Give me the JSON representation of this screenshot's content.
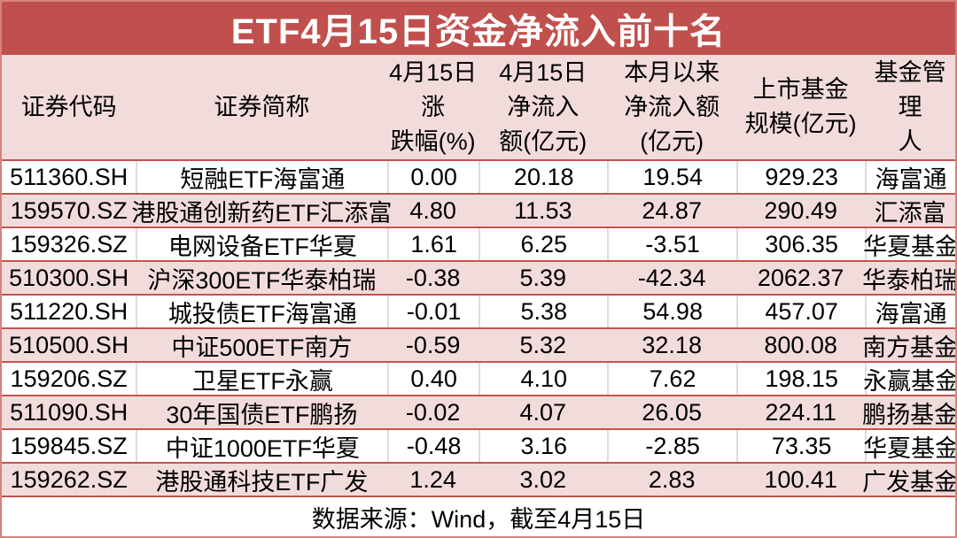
{
  "title": "ETF4月15日资金净流入前十名",
  "colors": {
    "title_background": "#c0504d",
    "row_highlight_pink": "#f2dcdb",
    "row_border_red": "#c4534f",
    "title_text": "#ffffff",
    "body_text": "#000000"
  },
  "table": {
    "headers": [
      "证券代码",
      "证券简称",
      "4月15日涨\n跌幅(%)",
      "4月15日\n净流入\n额(亿元)",
      "本月以来\n净流入额\n(亿元)",
      "上市基金\n规模(亿元)",
      "基金管理\n人"
    ],
    "rows": [
      [
        "511360.SH",
        "短融ETF海富通",
        "0.00",
        "20.18",
        "19.54",
        "929.23",
        "海富通"
      ],
      [
        "159570.SZ",
        "港股通创新药ETF汇添富",
        "4.80",
        "11.53",
        "24.87",
        "290.49",
        "汇添富"
      ],
      [
        "159326.SZ",
        "电网设备ETF华夏",
        "1.61",
        "6.25",
        "-3.51",
        "306.35",
        "华夏基金"
      ],
      [
        "510300.SH",
        "沪深300ETF华泰柏瑞",
        "-0.38",
        "5.39",
        "-42.34",
        "2062.37",
        "华泰柏瑞"
      ],
      [
        "511220.SH",
        "城投债ETF海富通",
        "-0.01",
        "5.38",
        "54.98",
        "457.07",
        "海富通"
      ],
      [
        "510500.SH",
        "中证500ETF南方",
        "-0.59",
        "5.32",
        "32.18",
        "800.08",
        "南方基金"
      ],
      [
        "159206.SZ",
        "卫星ETF永赢",
        "0.40",
        "4.10",
        "7.62",
        "198.15",
        "永赢基金"
      ],
      [
        "511090.SH",
        "30年国债ETF鹏扬",
        "-0.02",
        "4.07",
        "26.05",
        "224.11",
        "鹏扬基金"
      ],
      [
        "159845.SZ",
        "中证1000ETF华夏",
        "-0.48",
        "3.16",
        "-2.85",
        "73.35",
        "华夏基金"
      ],
      [
        "159262.SZ",
        "港股通科技ETF广发",
        "1.24",
        "3.02",
        "2.83",
        "100.41",
        "广发基金"
      ]
    ]
  },
  "footer": "数据来源：Wind，截至4月15日",
  "chart_data": {
    "type": "table",
    "title": "ETF4月15日资金净流入前十名",
    "columns": [
      "证券代码",
      "证券简称",
      "4月15日涨跌幅(%)",
      "4月15日净流入额(亿元)",
      "本月以来净流入额(亿元)",
      "上市基金规模(亿元)",
      "基金管理人"
    ],
    "rows": [
      [
        "511360.SH",
        "短融ETF海富通",
        0.0,
        20.18,
        19.54,
        929.23,
        "海富通"
      ],
      [
        "159570.SZ",
        "港股通创新药ETF汇添富",
        4.8,
        11.53,
        24.87,
        290.49,
        "汇添富"
      ],
      [
        "159326.SZ",
        "电网设备ETF华夏",
        1.61,
        6.25,
        -3.51,
        306.35,
        "华夏基金"
      ],
      [
        "510300.SH",
        "沪深300ETF华泰柏瑞",
        -0.38,
        5.39,
        -42.34,
        2062.37,
        "华泰柏瑞"
      ],
      [
        "511220.SH",
        "城投债ETF海富通",
        -0.01,
        5.38,
        54.98,
        457.07,
        "海富通"
      ],
      [
        "510500.SH",
        "中证500ETF南方",
        -0.59,
        5.32,
        32.18,
        800.08,
        "南方基金"
      ],
      [
        "159206.SZ",
        "卫星ETF永赢",
        0.4,
        4.1,
        7.62,
        198.15,
        "永赢基金"
      ],
      [
        "511090.SH",
        "30年国债ETF鹏扬",
        -0.02,
        4.07,
        26.05,
        224.11,
        "鹏扬基金"
      ],
      [
        "159845.SZ",
        "中证1000ETF华夏",
        -0.48,
        3.16,
        -2.85,
        73.35,
        "华夏基金"
      ],
      [
        "159262.SZ",
        "港股通科技ETF广发",
        1.24,
        3.02,
        2.83,
        100.41,
        "广发基金"
      ]
    ],
    "source_note": "数据来源：Wind，截至4月15日"
  }
}
